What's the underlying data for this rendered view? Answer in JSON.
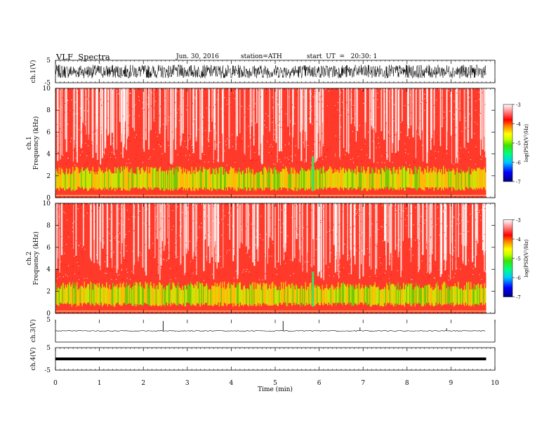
{
  "header": {
    "title": "VLF  Spectra",
    "date": "Jun. 30, 2016",
    "station": "station=ATH",
    "start": "start  UT  =   20:30: 1"
  },
  "colors": {
    "spectrogram_scale": [
      "#000080",
      "#0000ff",
      "#00c8ff",
      "#00ff80",
      "#40e000",
      "#c8ff00",
      "#ffff00",
      "#ff8000",
      "#ff0000",
      "#ffffff"
    ]
  },
  "chart_data": [
    {
      "type": "line",
      "name": "ch1-waveform",
      "ylabel": "ch.1(V)",
      "ylim": [
        -5,
        5
      ],
      "yticks": [
        "5",
        "-5"
      ],
      "xlim": [
        0,
        10
      ],
      "description_values": {
        "amplitude_range": [
          -3,
          3
        ],
        "mean": 0
      }
    },
    {
      "type": "heatmap",
      "name": "ch1-spectrogram",
      "ylabel": "ch.1\nFrequency  (kHz)",
      "ylim": [
        0,
        10
      ],
      "yticks": [
        "0",
        "2",
        "4",
        "6",
        "8",
        "10"
      ],
      "xlim": [
        0,
        9.8
      ],
      "colorbar": {
        "label": "log(PSD(V²/Hz)",
        "ticks": [
          "-3",
          "-4",
          "-5",
          "-6",
          "-7"
        ],
        "range": [
          -7,
          -3
        ]
      },
      "intense_band_khz": [
        0.8,
        2.5
      ],
      "notable_time_min": 5.85
    },
    {
      "type": "heatmap",
      "name": "ch2-spectrogram",
      "ylabel": "ch.2\nFrequency  (kHz)",
      "ylim": [
        0,
        10
      ],
      "yticks": [
        "0",
        "2",
        "4",
        "6",
        "8",
        "10"
      ],
      "xlim": [
        0,
        9.8
      ],
      "colorbar": {
        "label": "log(PSD(V²/Hz)",
        "ticks": [
          "-3",
          "-4",
          "-5",
          "-6",
          "-7"
        ],
        "range": [
          -7,
          -3
        ]
      },
      "intense_band_khz": [
        0.8,
        2.5
      ],
      "notable_time_min": 5.85
    },
    {
      "type": "line",
      "name": "ch3-waveform",
      "ylabel": "ch.3(V)",
      "ylim": [
        -5,
        5
      ],
      "yticks": [
        "5"
      ],
      "baseline": 0,
      "spikes": [
        {
          "x": 2.45,
          "y": 4.4
        },
        {
          "x": 5.18,
          "y": 4.4
        },
        {
          "x": 6.93,
          "y": 1.5
        },
        {
          "x": 8.9,
          "y": 1.2
        }
      ]
    },
    {
      "type": "line",
      "name": "ch4-waveform",
      "ylabel": "ch.4(V)",
      "ylim": [
        -5,
        5
      ],
      "yticks": [
        "5",
        "-5"
      ],
      "baseline": 0
    }
  ],
  "xaxis": {
    "label": "Time  (min)",
    "ticks": [
      "0",
      "1",
      "2",
      "3",
      "4",
      "5",
      "6",
      "7",
      "8",
      "9",
      "10"
    ],
    "range": [
      0,
      10
    ]
  }
}
